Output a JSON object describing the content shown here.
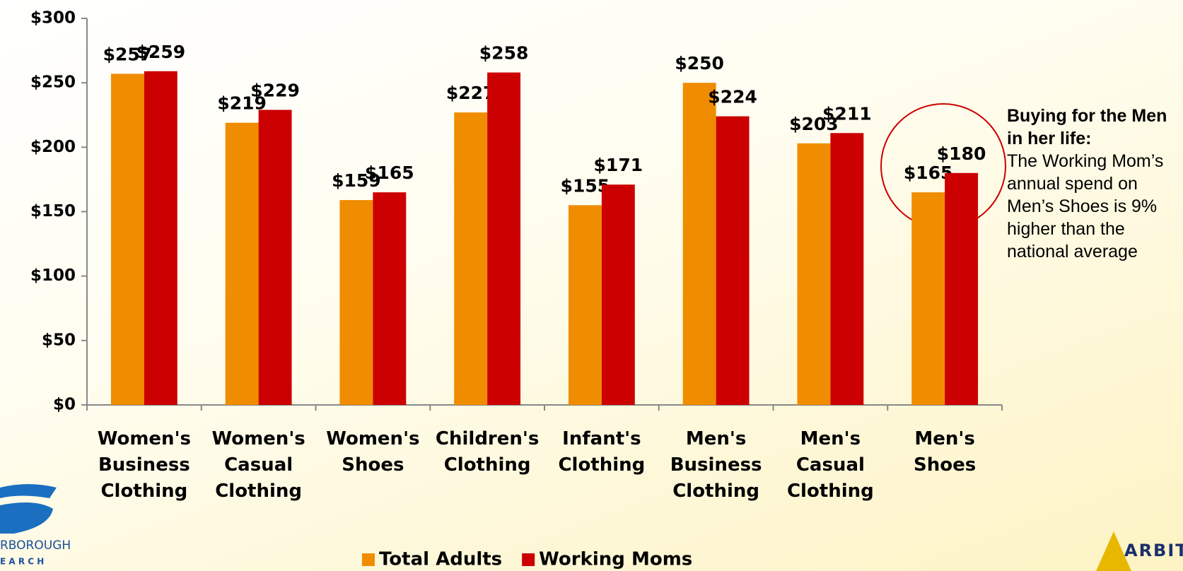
{
  "chart_data": {
    "type": "bar",
    "categories": [
      "Women's Business Clothing",
      "Women's Casual Clothing",
      "Women's Shoes",
      "Children's Clothing",
      "Infant's Clothing",
      "Men's Business Clothing",
      "Men's Casual Clothing",
      "Men's Shoes"
    ],
    "series": [
      {
        "name": "Total Adults",
        "color": "#f08c00",
        "values": [
          257,
          219,
          159,
          227,
          155,
          250,
          203,
          165
        ],
        "value_labels": [
          "$257",
          "$219",
          "$159",
          "$227",
          "$155",
          "$250",
          "$203",
          "$165"
        ]
      },
      {
        "name": "Working Moms",
        "color": "#cc0000",
        "values": [
          259,
          229,
          165,
          258,
          171,
          224,
          211,
          180
        ],
        "value_labels": [
          "$259",
          "$229",
          "$165",
          "$258",
          "$171",
          "$224",
          "$211",
          "$180"
        ]
      }
    ],
    "ylim": [
      0,
      300
    ],
    "yticks": [
      {
        "value": 0,
        "label": "$0"
      },
      {
        "value": 50,
        "label": "$50"
      },
      {
        "value": 100,
        "label": "$100"
      },
      {
        "value": 150,
        "label": "$150"
      },
      {
        "value": 200,
        "label": "$200"
      },
      {
        "value": 250,
        "label": "$250"
      },
      {
        "value": 300,
        "label": "$300"
      }
    ],
    "legend": "bottom",
    "annotation": {
      "title": "Buying for the Men in her life:",
      "text": "The Working Mom’s annual spend on Men’s Shoes is 9% higher than the national average"
    },
    "logos": [
      "RBOROUGH",
      "E A R C H",
      "ARBITRON"
    ]
  }
}
